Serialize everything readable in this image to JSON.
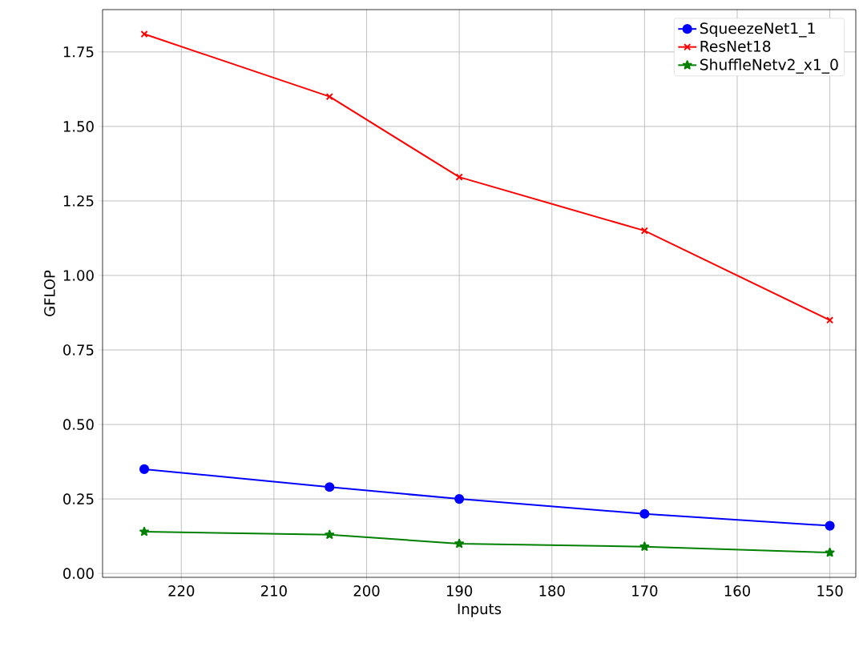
{
  "chart_data": {
    "type": "line",
    "xlabel": "Inputs",
    "ylabel": "GFLOP",
    "x": [
      224,
      204,
      190,
      170,
      150
    ],
    "series": [
      {
        "name": "SqueezeNet1_1",
        "color": "#0000ff",
        "marker": "circle",
        "values": [
          0.35,
          0.29,
          0.25,
          0.2,
          0.16
        ]
      },
      {
        "name": "ResNet18",
        "color": "#ff0000",
        "marker": "cross",
        "values": [
          1.81,
          1.6,
          1.33,
          1.15,
          0.85
        ]
      },
      {
        "name": "ShuffleNetv2_x1_0",
        "color": "#008000",
        "marker": "star",
        "values": [
          0.14,
          0.13,
          0.1,
          0.09,
          0.07
        ]
      }
    ],
    "xlim": [
      228.5,
      147.2
    ],
    "ylim": [
      -0.013,
      1.892
    ],
    "xticks": [
      220,
      210,
      200,
      190,
      180,
      170,
      160,
      150
    ],
    "yticks": [
      {
        "value": 0,
        "label": "0.00"
      },
      {
        "value": 0.25,
        "label": "0.25"
      },
      {
        "value": 0.5,
        "label": "0.50"
      },
      {
        "value": 0.75,
        "label": "0.75"
      },
      {
        "value": 1.0,
        "label": "1.00"
      },
      {
        "value": 1.25,
        "label": "1.25"
      },
      {
        "value": 1.5,
        "label": "1.50"
      },
      {
        "value": 1.75,
        "label": "1.75"
      }
    ],
    "grid": true,
    "legend": "top right",
    "line_style": "solid"
  }
}
